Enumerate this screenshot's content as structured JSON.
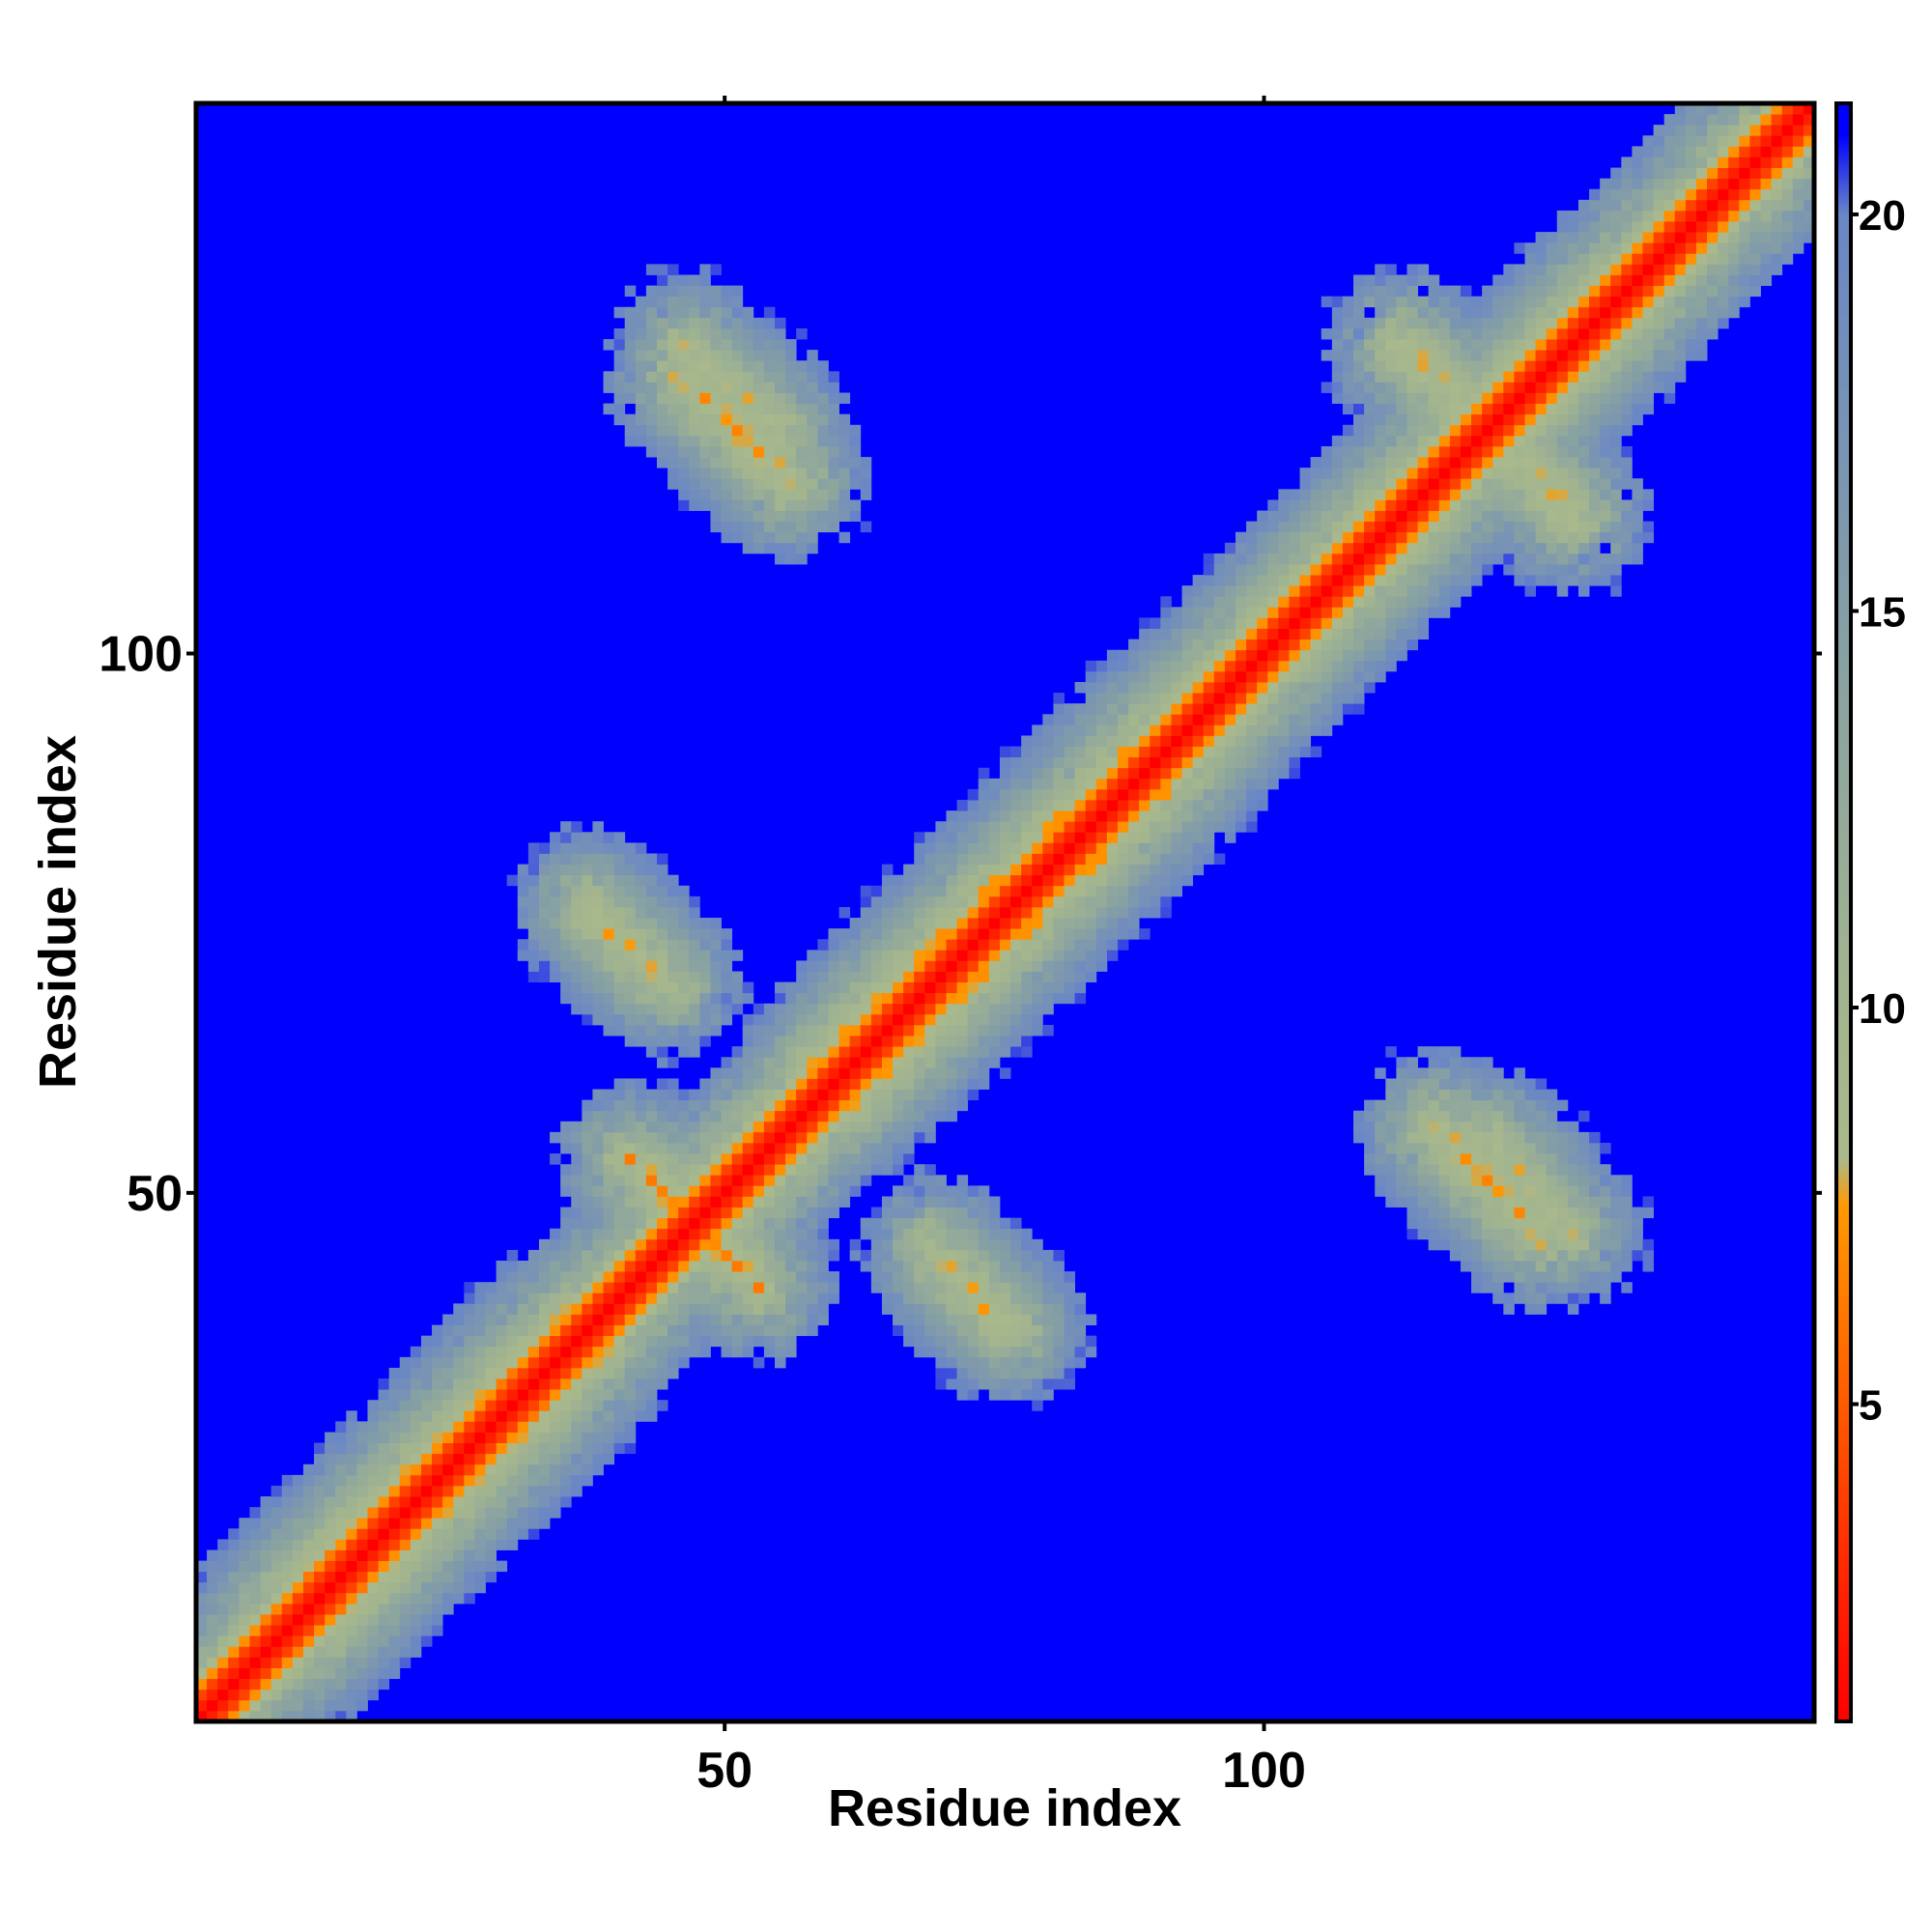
{
  "chart_data": {
    "type": "heatmap",
    "title": "",
    "xlabel": "Residue index",
    "ylabel": "Residue index",
    "x_range": [
      1,
      151
    ],
    "y_range": [
      1,
      151
    ],
    "x_ticks": [
      50,
      100
    ],
    "y_ticks": [
      50,
      100
    ],
    "grid": false,
    "colorbar": {
      "placement": "right",
      "range": [
        1,
        21.4
      ],
      "ticks": [
        5,
        10,
        15,
        20
      ],
      "stops": [
        {
          "value": 1.0,
          "color": "#ff0000"
        },
        {
          "value": 2.5,
          "color": "#ff1f00"
        },
        {
          "value": 5.0,
          "color": "#ff5a00"
        },
        {
          "value": 7.5,
          "color": "#ff9900"
        },
        {
          "value": 8.1,
          "color": "#aab98d"
        },
        {
          "value": 10.0,
          "color": "#a3b58e"
        },
        {
          "value": 15.0,
          "color": "#849ea6"
        },
        {
          "value": 20.0,
          "color": "#6a86c6"
        },
        {
          "value": 21.0,
          "color": "#0000ff"
        }
      ]
    },
    "description_features": {
      "diagonal_width": 2,
      "background_value": 21.4,
      "contact_bands": [
        {
          "kind": "antiparallel",
          "i_range": [
            40,
            50
          ],
          "j_range": [
            42,
            52
          ],
          "min_value": 6
        },
        {
          "kind": "antiparallel",
          "i_range": [
            45,
            55
          ],
          "j_range": [
            115,
            125
          ],
          "min_value": 6
        },
        {
          "kind": "antiparallel",
          "i_range": [
            120,
            128
          ],
          "j_range": [
            112,
            120
          ],
          "min_value": 6
        },
        {
          "kind": "antiparallel",
          "i_range": [
            36,
            44
          ],
          "j_range": [
            68,
            76
          ],
          "min_value": 7
        },
        {
          "kind": "antiparallel",
          "i_range": [
            45,
            54
          ],
          "j_range": [
            120,
            128
          ],
          "min_value": 7
        },
        {
          "kind": "antiparallel",
          "i_range": [
            69,
            75
          ],
          "j_range": [
            36,
            42
          ],
          "min_value": 7
        },
        {
          "kind": "parallel",
          "i_range": [
            6,
            34
          ],
          "j_range": [
            9,
            37
          ],
          "min_value": 6
        },
        {
          "kind": "parallel",
          "i_range": [
            56,
            88
          ],
          "j_range": [
            60,
            92
          ],
          "min_value": 7
        },
        {
          "kind": "parallel",
          "i_range": [
            90,
            130
          ],
          "j_range": [
            94,
            134
          ],
          "min_value": 8
        }
      ]
    }
  }
}
